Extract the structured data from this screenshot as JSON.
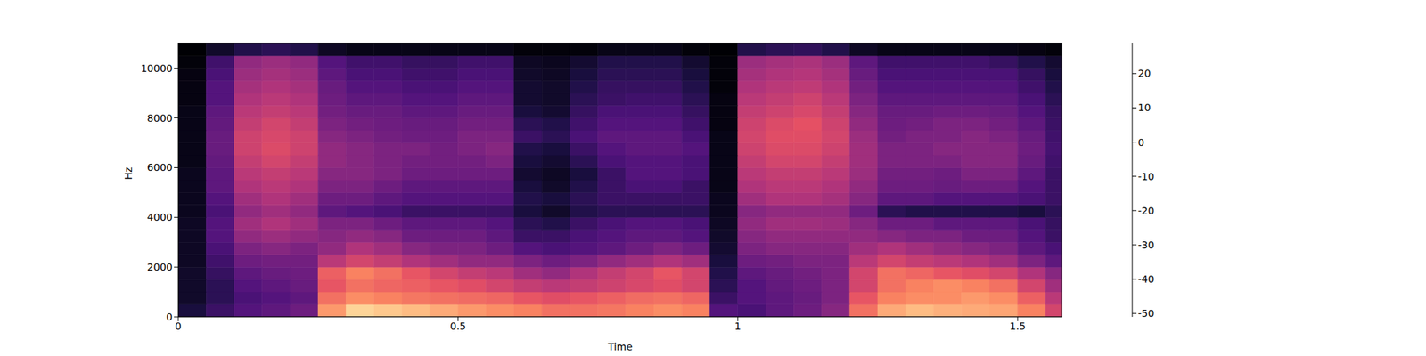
{
  "chart_data": {
    "type": "heatmap",
    "xlabel": "Time",
    "ylabel": "Hz",
    "xlim": [
      0,
      1.58
    ],
    "xticks": [
      0,
      0.5,
      1,
      1.5
    ],
    "ylim": [
      0,
      11025
    ],
    "yticks": [
      0,
      2000,
      4000,
      6000,
      8000,
      10000
    ],
    "x_edges": [
      0,
      0.05,
      0.1,
      0.15,
      0.2,
      0.25,
      0.3,
      0.35,
      0.4,
      0.45,
      0.5,
      0.55,
      0.6,
      0.65,
      0.7,
      0.75,
      0.8,
      0.85,
      0.9,
      0.95,
      1.0,
      1.05,
      1.1,
      1.15,
      1.2,
      1.25,
      1.3,
      1.35,
      1.4,
      1.45,
      1.5,
      1.55,
      1.58
    ],
    "y_edges": [
      0,
      500,
      1000,
      1500,
      2000,
      2500,
      3000,
      3500,
      4000,
      4500,
      5000,
      5500,
      6000,
      6500,
      7000,
      7500,
      8000,
      8500,
      9000,
      9500,
      10000,
      10500,
      11025
    ],
    "cells": [
      [
        -42,
        -35,
        -30,
        -28,
        -25,
        12,
        22,
        20,
        18,
        15,
        12,
        10,
        8,
        5,
        5,
        6,
        8,
        10,
        8,
        -30,
        -32,
        -28,
        -25,
        -20,
        5,
        15,
        18,
        16,
        15,
        14,
        8,
        -5
      ],
      [
        -45,
        -38,
        -32,
        -30,
        -28,
        5,
        10,
        8,
        6,
        5,
        4,
        3,
        0,
        -2,
        0,
        2,
        4,
        5,
        3,
        -35,
        -30,
        -28,
        -26,
        -22,
        0,
        8,
        10,
        10,
        12,
        10,
        2,
        -10
      ],
      [
        -45,
        -38,
        -30,
        -28,
        -26,
        0,
        5,
        3,
        2,
        0,
        -2,
        -5,
        -8,
        -10,
        -8,
        -6,
        -4,
        -2,
        -5,
        -38,
        -30,
        -27,
        -25,
        -22,
        -5,
        5,
        8,
        10,
        8,
        5,
        -5,
        -15
      ],
      [
        -45,
        -36,
        -28,
        -26,
        -25,
        2,
        8,
        5,
        0,
        -5,
        -8,
        -10,
        -15,
        -18,
        -12,
        -8,
        -5,
        0,
        -5,
        -40,
        -28,
        -26,
        -24,
        -22,
        -5,
        5,
        3,
        0,
        -2,
        -5,
        -12,
        -20
      ],
      [
        -46,
        -34,
        -25,
        -24,
        -24,
        -10,
        -5,
        -8,
        -12,
        -15,
        -18,
        -18,
        -22,
        -25,
        -22,
        -18,
        -15,
        -12,
        -15,
        -42,
        -25,
        -24,
        -22,
        -22,
        -10,
        -5,
        -8,
        -10,
        -12,
        -15,
        -22,
        -28
      ],
      [
        -46,
        -32,
        -22,
        -20,
        -22,
        -18,
        -12,
        -15,
        -20,
        -22,
        -22,
        -25,
        -30,
        -32,
        -30,
        -28,
        -25,
        -22,
        -25,
        -44,
        -22,
        -20,
        -20,
        -20,
        -15,
        -12,
        -15,
        -18,
        -20,
        -22,
        -28,
        -32
      ],
      [
        -46,
        -30,
        -18,
        -16,
        -18,
        -20,
        -18,
        -20,
        -25,
        -25,
        -25,
        -28,
        -35,
        -35,
        -32,
        -30,
        -28,
        -28,
        -30,
        -45,
        -20,
        -18,
        -18,
        -18,
        -18,
        -20,
        -22,
        -22,
        -25,
        -25,
        -30,
        -35
      ],
      [
        -46,
        -30,
        -15,
        -12,
        -15,
        -22,
        -22,
        -25,
        -28,
        -28,
        -28,
        -30,
        -38,
        -40,
        -35,
        -32,
        -30,
        -30,
        -32,
        -46,
        -18,
        -15,
        -15,
        -16,
        -20,
        -25,
        -25,
        -28,
        -28,
        -28,
        -32,
        -36
      ],
      [
        -47,
        -32,
        -18,
        -15,
        -18,
        -28,
        -30,
        -32,
        -35,
        -35,
        -35,
        -35,
        -42,
        -45,
        -40,
        -38,
        -38,
        -38,
        -38,
        -47,
        -20,
        -18,
        -18,
        -18,
        -25,
        -38,
        -40,
        -40,
        -40,
        -40,
        -42,
        -38
      ],
      [
        -47,
        -30,
        -15,
        -12,
        -15,
        -25,
        -25,
        -28,
        -30,
        -30,
        -30,
        -30,
        -40,
        -42,
        -38,
        -35,
        -35,
        -35,
        -35,
        -47,
        -15,
        -12,
        -12,
        -14,
        -20,
        -28,
        -28,
        -30,
        -30,
        -30,
        -32,
        -35
      ],
      [
        -47,
        -28,
        -12,
        -10,
        -12,
        -22,
        -22,
        -25,
        -28,
        -28,
        -28,
        -28,
        -42,
        -45,
        -40,
        -35,
        -32,
        -32,
        -35,
        -48,
        -12,
        -10,
        -10,
        -12,
        -18,
        -25,
        -25,
        -26,
        -25,
        -25,
        -30,
        -35
      ],
      [
        -47,
        -28,
        -10,
        -8,
        -10,
        -20,
        -20,
        -22,
        -25,
        -25,
        -25,
        -25,
        -44,
        -46,
        -42,
        -35,
        -30,
        -30,
        -32,
        -48,
        -10,
        -8,
        -8,
        -10,
        -16,
        -24,
        -24,
        -25,
        -22,
        -22,
        -28,
        -35
      ],
      [
        -48,
        -27,
        -8,
        -5,
        -8,
        -18,
        -20,
        -22,
        -24,
        -24,
        -24,
        -22,
        -42,
        -44,
        -38,
        -32,
        -30,
        -30,
        -32,
        -48,
        -8,
        -5,
        -5,
        -8,
        -15,
        -22,
        -22,
        -22,
        -20,
        -20,
        -26,
        -34
      ],
      [
        -48,
        -26,
        -6,
        -3,
        -6,
        -18,
        -20,
        -22,
        -22,
        -24,
        -22,
        -20,
        -40,
        -42,
        -35,
        -30,
        -28,
        -28,
        -30,
        -48,
        -6,
        -3,
        -3,
        -6,
        -15,
        -22,
        -22,
        -20,
        -20,
        -20,
        -25,
        -33
      ],
      [
        -48,
        -26,
        -6,
        -4,
        -6,
        -20,
        -22,
        -24,
        -25,
        -25,
        -22,
        -22,
        -35,
        -38,
        -32,
        -28,
        -28,
        -28,
        -32,
        -48,
        -5,
        -2,
        -2,
        -5,
        -16,
        -24,
        -22,
        -22,
        -20,
        -22,
        -26,
        -34
      ],
      [
        -48,
        -27,
        -8,
        -5,
        -8,
        -22,
        -24,
        -25,
        -26,
        -26,
        -24,
        -24,
        -38,
        -40,
        -34,
        -30,
        -30,
        -30,
        -34,
        -49,
        -6,
        -3,
        -1,
        -6,
        -18,
        -25,
        -24,
        -22,
        -22,
        -24,
        -28,
        -35
      ],
      [
        -48,
        -28,
        -10,
        -8,
        -10,
        -24,
        -26,
        -26,
        -28,
        -28,
        -26,
        -26,
        -42,
        -44,
        -36,
        -32,
        -32,
        -32,
        -36,
        -49,
        -8,
        -6,
        -4,
        -8,
        -20,
        -26,
        -26,
        -25,
        -25,
        -26,
        -30,
        -36
      ],
      [
        -49,
        -30,
        -12,
        -10,
        -12,
        -25,
        -28,
        -28,
        -30,
        -30,
        -28,
        -28,
        -44,
        -45,
        -38,
        -35,
        -34,
        -34,
        -38,
        -49,
        -10,
        -8,
        -6,
        -10,
        -22,
        -28,
        -28,
        -28,
        -28,
        -28,
        -32,
        -38
      ],
      [
        -49,
        -30,
        -14,
        -12,
        -14,
        -26,
        -30,
        -30,
        -32,
        -32,
        -30,
        -30,
        -44,
        -45,
        -40,
        -36,
        -36,
        -36,
        -40,
        -50,
        -12,
        -10,
        -9,
        -12,
        -24,
        -30,
        -30,
        -30,
        -30,
        -30,
        -34,
        -40
      ],
      [
        -49,
        -32,
        -16,
        -14,
        -16,
        -28,
        -32,
        -32,
        -34,
        -34,
        -32,
        -32,
        -45,
        -46,
        -42,
        -38,
        -38,
        -38,
        -42,
        -50,
        -14,
        -12,
        -11,
        -14,
        -26,
        -32,
        -32,
        -32,
        -32,
        -32,
        -36,
        -42
      ],
      [
        -50,
        -34,
        -18,
        -16,
        -18,
        -30,
        -34,
        -34,
        -36,
        -36,
        -34,
        -34,
        -46,
        -47,
        -44,
        -40,
        -40,
        -40,
        -44,
        -50,
        -16,
        -14,
        -13,
        -16,
        -28,
        -34,
        -34,
        -34,
        -34,
        -36,
        -40,
        -44
      ],
      [
        -51,
        -45,
        -40,
        -38,
        -40,
        -46,
        -48,
        -48,
        -48,
        -48,
        -48,
        -48,
        -50,
        -50,
        -50,
        -48,
        -48,
        -48,
        -50,
        -51,
        -40,
        -38,
        -37,
        -40,
        -46,
        -48,
        -48,
        -48,
        -48,
        -48,
        -49,
        -50
      ]
    ],
    "clim": [
      -51,
      29
    ],
    "cticks": [
      -50,
      -40,
      -30,
      -20,
      -10,
      0,
      10,
      20
    ]
  }
}
